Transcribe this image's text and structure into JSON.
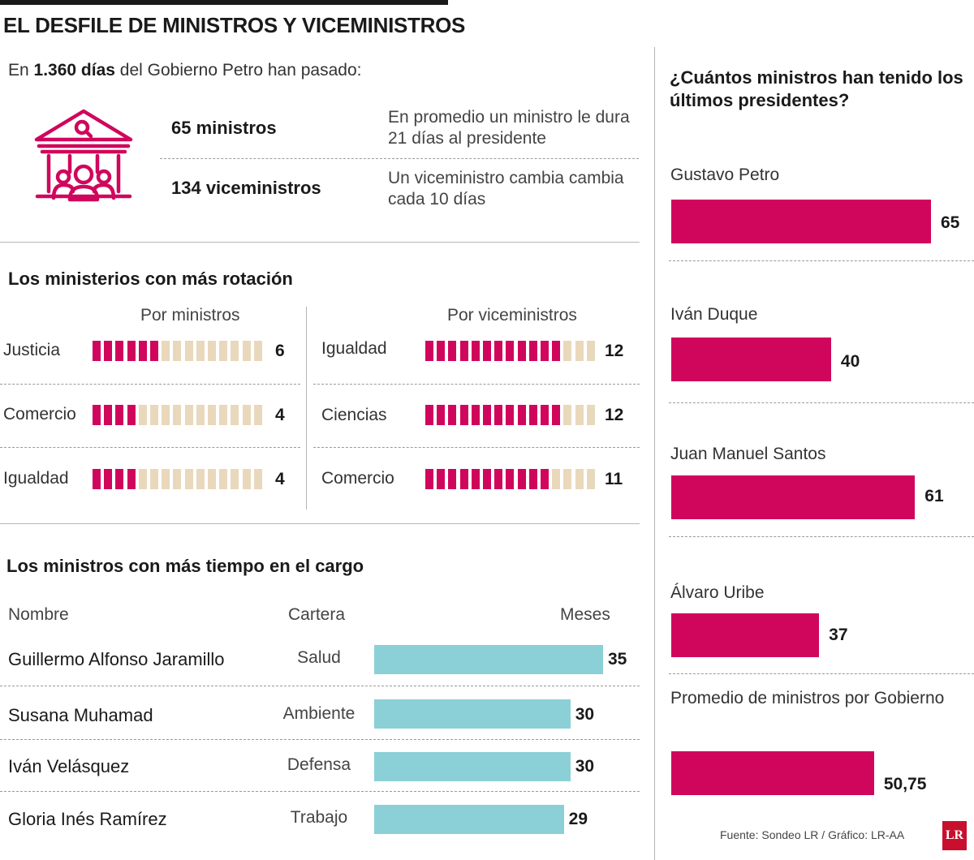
{
  "header": {
    "title": "EL DESFILE DE MINISTROS Y VICEMINISTROS",
    "intro_prefix": "En ",
    "intro_bold": "1.360 días",
    "intro_suffix": " del Gobierno Petro han pasado:"
  },
  "stats": [
    {
      "number": "65 ministros",
      "description": "En promedio un ministro le dura 21 días al presidente"
    },
    {
      "number": "134 viceministros",
      "description": "Un viceministro cambia cambia cada 10 días"
    }
  ],
  "colors": {
    "pink": "#d0065c",
    "beige": "#e9d8bb",
    "teal": "#8ad0d6"
  },
  "rotation": {
    "title": "Los ministerios con más rotación",
    "ministers_header": "Por ministros",
    "vice_header": "Por viceministros",
    "ministers": [
      {
        "label": "Justicia",
        "value": 6,
        "total": 15,
        "display": "6"
      },
      {
        "label": "Comercio",
        "value": 4,
        "total": 15,
        "display": "4"
      },
      {
        "label": "Igualdad",
        "value": 4,
        "total": 15,
        "display": "4"
      }
    ],
    "viceministers": [
      {
        "label": "Igualdad",
        "value": 12,
        "total": 15,
        "display": "12"
      },
      {
        "label": "Ciencias",
        "value": 12,
        "total": 15,
        "display": "12"
      },
      {
        "label": "Comercio",
        "value": 11,
        "total": 15,
        "display": "11"
      }
    ]
  },
  "tenure": {
    "title": "Los ministros con más tiempo en el cargo",
    "col_name": "Nombre",
    "col_portfolio": "Cartera",
    "col_months": "Meses",
    "rows": [
      {
        "name": "Guillermo Alfonso Jaramillo",
        "portfolio": "Salud",
        "months": 35,
        "display": "35"
      },
      {
        "name": "Susana Muhamad",
        "portfolio": "Ambiente",
        "months": 30,
        "display": "30"
      },
      {
        "name": "Iván Velásquez",
        "portfolio": "Defensa",
        "months": 30,
        "display": "30"
      },
      {
        "name": "Gloria Inés Ramírez",
        "portfolio": "Trabajo",
        "months": 29,
        "display": "29"
      }
    ]
  },
  "chart_data": {
    "type": "bar",
    "title": "¿Cuántos ministros han tenido los últimos presidentes?",
    "categories": [
      "Gustavo Petro",
      "Iván Duque",
      "Juan Manuel Santos",
      "Álvaro Uribe",
      "Promedio de ministros por Gobierno"
    ],
    "values": [
      65,
      40,
      61,
      37,
      50.75
    ],
    "labels": [
      "65",
      "40",
      "61",
      "37",
      "50,75"
    ],
    "orientation": "horizontal",
    "xlim": [
      0,
      65
    ]
  },
  "footer": {
    "source": "Fuente: Sondeo LR / Gráfico: LR-AA",
    "logo": "LR"
  }
}
